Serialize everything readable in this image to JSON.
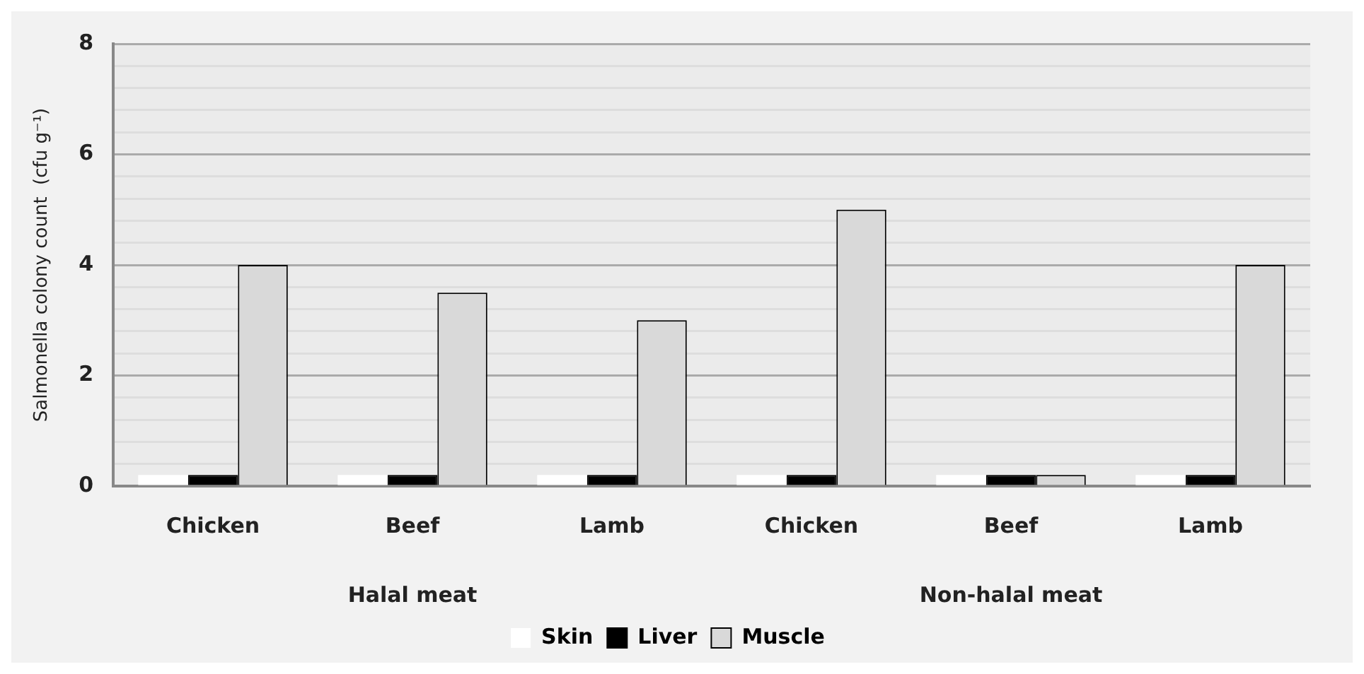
{
  "chart_data": {
    "type": "bar",
    "ylabel": "Salmonella colony count  (cfu g⁻¹)",
    "categories": [
      "Chicken",
      "Beef",
      "Lamb",
      "Chicken",
      "Beef",
      "Lamb"
    ],
    "series": [
      {
        "name": "Skin",
        "color": "#ffffff",
        "values": [
          0.2,
          0.2,
          0.2,
          0.2,
          0.2,
          0.2
        ]
      },
      {
        "name": "Liver",
        "color": "#000000",
        "values": [
          0.2,
          0.2,
          0.2,
          0.2,
          0.2,
          0.2
        ]
      },
      {
        "name": "Muscle",
        "color": "#d9d9d9",
        "values": [
          4,
          3.5,
          3,
          5,
          0.2,
          4
        ]
      }
    ],
    "ylim": [
      0,
      8
    ],
    "yticks": [
      0,
      2,
      4,
      6,
      8
    ],
    "grid": "y",
    "legend": "bottom",
    "annotations": [
      "Halal meat",
      "Non-halal meat"
    ]
  }
}
